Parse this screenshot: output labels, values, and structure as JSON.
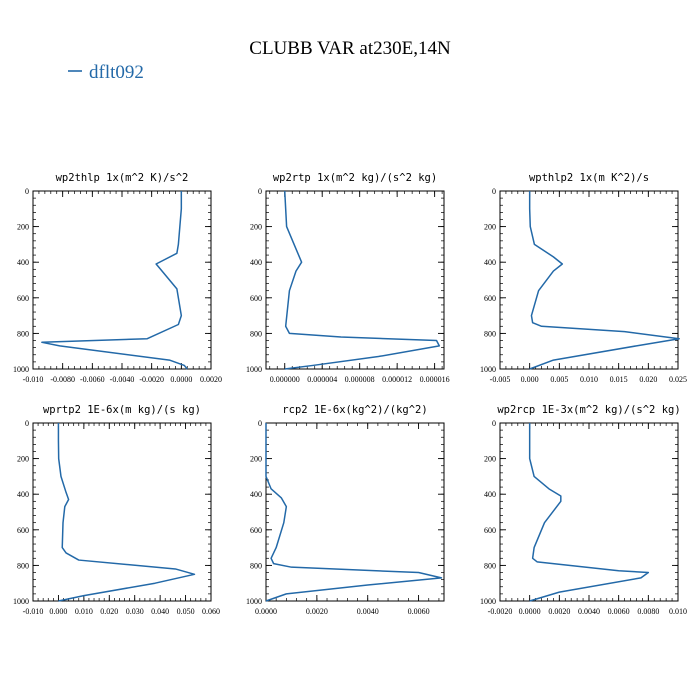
{
  "figure": {
    "title": "CLUBB VAR at230E,14N",
    "legend_label": "dflt092",
    "line_color": "#2369a8"
  },
  "chart_data": [
    {
      "type": "line",
      "title": "wp2thlp  1x(m^2 K)/s^2",
      "xlim": [
        -0.01,
        0.002
      ],
      "ylim": [
        1000,
        0
      ],
      "xticks": [
        -0.01,
        -0.008,
        -0.006,
        -0.004,
        -0.002,
        0.0,
        0.002
      ],
      "xtick_labels": [
        "-0.010",
        "-0.0080",
        "-0.0060",
        "-0.0040",
        "-0.0020",
        "0.0000",
        "0.0020"
      ],
      "yticks": [
        0,
        200,
        400,
        600,
        800,
        1000
      ],
      "ytick_labels": [
        "0",
        "200",
        "400",
        "600",
        "800",
        "1000"
      ],
      "series": [
        {
          "name": "dflt092",
          "x": [
            0.0,
            0.0,
            -0.0001,
            -0.0002,
            -0.0003,
            -0.0017,
            -0.0015,
            -0.0003,
            0.0,
            -0.0002,
            -0.0023,
            -0.0094,
            -0.0082,
            -0.0008,
            0.0002,
            0.0004
          ],
          "y": [
            0,
            100,
            200,
            300,
            350,
            410,
            430,
            550,
            700,
            750,
            830,
            850,
            870,
            950,
            980,
            1000
          ]
        }
      ]
    },
    {
      "type": "line",
      "title": "wp2rtp  1x(m^2 kg)/(s^2 kg)",
      "xlim": [
        -2e-06,
        1.7e-05
      ],
      "ylim": [
        1000,
        0
      ],
      "xticks": [
        0.0,
        4e-06,
        8e-06,
        1.2e-05,
        1.6e-05
      ],
      "xtick_labels": [
        "0.000000",
        "0.000004",
        "0.000008",
        "0.000012",
        "0.000016"
      ],
      "yticks": [
        0,
        200,
        400,
        600,
        800,
        1000
      ],
      "ytick_labels": [
        "0",
        "200",
        "400",
        "600",
        "800",
        "1000"
      ],
      "series": [
        {
          "name": "dflt092",
          "x": [
            0.0,
            1e-07,
            2e-07,
            1e-06,
            1.8e-06,
            1.2e-06,
            5e-07,
            1e-07,
            5e-07,
            6e-06,
            1.62e-05,
            1.65e-05,
            1e-05,
            3e-06,
            0.0
          ],
          "y": [
            0,
            100,
            200,
            300,
            400,
            450,
            560,
            760,
            800,
            820,
            840,
            870,
            930,
            980,
            1000
          ]
        }
      ]
    },
    {
      "type": "line",
      "title": "wpthlp2  1x(m K^2)/s",
      "xlim": [
        -0.005,
        0.025
      ],
      "ylim": [
        1000,
        0
      ],
      "xticks": [
        -0.005,
        0.0,
        0.005,
        0.01,
        0.015,
        0.02,
        0.025
      ],
      "xtick_labels": [
        "-0.005",
        "0.000",
        "0.005",
        "0.010",
        "0.015",
        "0.020",
        "0.025"
      ],
      "yticks": [
        0,
        200,
        400,
        600,
        800,
        1000
      ],
      "ytick_labels": [
        "0",
        "200",
        "400",
        "600",
        "800",
        "1000"
      ],
      "series": [
        {
          "name": "dflt092",
          "x": [
            0.0,
            0.0,
            0.0001,
            0.0008,
            0.004,
            0.0055,
            0.004,
            0.0015,
            0.0003,
            0.0005,
            0.002,
            0.016,
            0.0252,
            0.018,
            0.004,
            0.0
          ],
          "y": [
            0,
            100,
            200,
            300,
            370,
            410,
            450,
            560,
            700,
            740,
            760,
            790,
            830,
            870,
            950,
            1000
          ]
        }
      ]
    },
    {
      "type": "line",
      "title": "wprtp2  1E-6x(m kg)/(s kg)",
      "xlim": [
        -0.01,
        0.06
      ],
      "ylim": [
        1000,
        0
      ],
      "xticks": [
        -0.01,
        0.0,
        0.01,
        0.02,
        0.03,
        0.04,
        0.05,
        0.06
      ],
      "xtick_labels": [
        "-0.010",
        "0.000",
        "0.010",
        "0.020",
        "0.030",
        "0.040",
        "0.050",
        "0.060"
      ],
      "yticks": [
        0,
        200,
        400,
        600,
        800,
        1000
      ],
      "ytick_labels": [
        "0",
        "200",
        "400",
        "600",
        "800",
        "1000"
      ],
      "series": [
        {
          "name": "dflt092",
          "x": [
            0.0,
            0.0,
            0.0001,
            0.001,
            0.003,
            0.004,
            0.0025,
            0.0018,
            0.0015,
            0.003,
            0.008,
            0.046,
            0.0535,
            0.038,
            0.01,
            0.0
          ],
          "y": [
            0,
            100,
            200,
            300,
            390,
            430,
            470,
            560,
            700,
            730,
            770,
            820,
            850,
            900,
            970,
            1000
          ]
        }
      ]
    },
    {
      "type": "line",
      "title": "rcp2  1E-6x(kg^2)/(kg^2)",
      "xlim": [
        0.0,
        0.007
      ],
      "ylim": [
        1000,
        0
      ],
      "xticks": [
        0.0,
        0.002,
        0.004,
        0.006
      ],
      "xtick_labels": [
        "0.0000",
        "0.0020",
        "0.0040",
        "0.0060"
      ],
      "yticks": [
        0,
        200,
        400,
        600,
        800,
        1000
      ],
      "ytick_labels": [
        "0",
        "200",
        "400",
        "600",
        "800",
        "1000"
      ],
      "series": [
        {
          "name": "dflt092",
          "x": [
            0.0,
            0.0,
            0.0,
            0.0002,
            0.0006,
            0.0008,
            0.0007,
            0.0004,
            0.0002,
            0.0003,
            0.001,
            0.006,
            0.0069,
            0.004,
            0.0008,
            0.0
          ],
          "y": [
            0,
            200,
            300,
            370,
            420,
            470,
            560,
            700,
            760,
            790,
            810,
            840,
            870,
            910,
            960,
            1000
          ]
        }
      ]
    },
    {
      "type": "line",
      "title": "wp2rcp  1E-3x(m^2 kg)/(s^2 kg)",
      "xlim": [
        -0.002,
        0.01
      ],
      "ylim": [
        1000,
        0
      ],
      "xticks": [
        -0.002,
        0.0,
        0.002,
        0.004,
        0.006,
        0.008,
        0.01
      ],
      "xtick_labels": [
        "-0.0020",
        "0.0000",
        "0.0020",
        "0.0040",
        "0.0060",
        "0.0080",
        "0.010"
      ],
      "yticks": [
        0,
        200,
        400,
        600,
        800,
        1000
      ],
      "ytick_labels": [
        "0",
        "200",
        "400",
        "600",
        "800",
        "1000"
      ],
      "series": [
        {
          "name": "dflt092",
          "x": [
            0.0,
            0.0,
            0.0,
            0.0003,
            0.0013,
            0.0021,
            0.0021,
            0.001,
            0.0003,
            0.0002,
            0.0005,
            0.006,
            0.008,
            0.0075,
            0.002,
            0.0
          ],
          "y": [
            0,
            100,
            200,
            300,
            370,
            410,
            440,
            560,
            700,
            760,
            780,
            830,
            840,
            870,
            950,
            1000
          ]
        }
      ]
    }
  ]
}
